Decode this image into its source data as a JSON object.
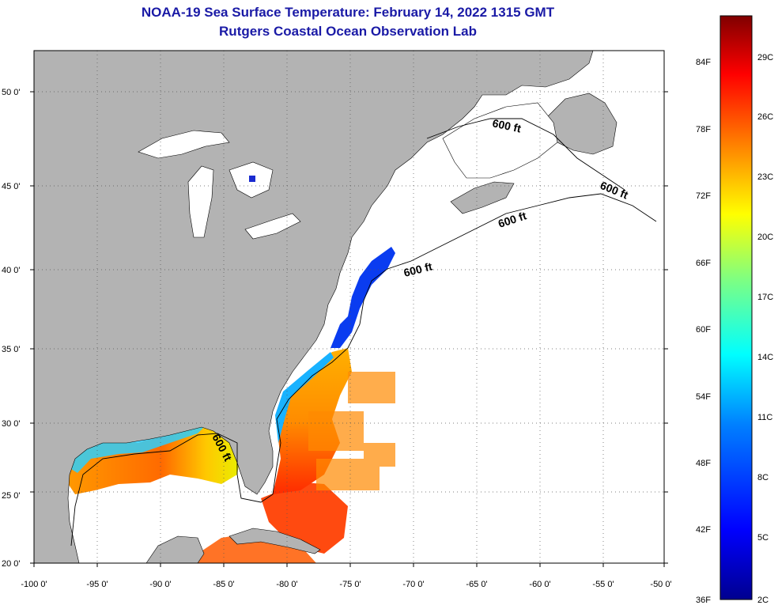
{
  "title": "NOAA-19 Sea Surface Temperature:  February 14, 2022 1315 GMT",
  "subtitle": "Rutgers Coastal Ocean Observation Lab",
  "map": {
    "lon_min": -100,
    "lon_max": -50,
    "lat_min": 20,
    "lat_max": 52.5,
    "lon_ticks": [
      "-100 0'",
      "-95 0'",
      "-90 0'",
      "-85 0'",
      "-80 0'",
      "-75 0'",
      "-70 0'",
      "-65 0'",
      "-60 0'",
      "-55 0'",
      "-50 0'"
    ],
    "lat_ticks": [
      "20 0'",
      "25 0'",
      "30 0'",
      "35 0'",
      "40 0'",
      "45 0'",
      "50 0'"
    ],
    "grid": "dotted",
    "land_color": "#b3b3b3",
    "no_data_color": "#ffffff",
    "isobath_labels": [
      "600 ft",
      "600 ft",
      "600 ft",
      "600 ft",
      "600 ft"
    ]
  },
  "colorbar": {
    "f_labels": [
      "36F",
      "42F",
      "48F",
      "54F",
      "60F",
      "66F",
      "72F",
      "78F",
      "84F"
    ],
    "c_labels": [
      "2C",
      "5C",
      "8C",
      "11C",
      "14C",
      "17C",
      "20C",
      "23C",
      "26C",
      "29C"
    ],
    "colors": [
      "#00008f",
      "#0000ff",
      "#0080ff",
      "#00ffff",
      "#80ff80",
      "#ffff00",
      "#ff8000",
      "#ff0000",
      "#800000"
    ]
  }
}
